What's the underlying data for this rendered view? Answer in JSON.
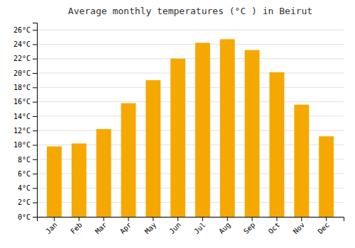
{
  "chart_data": {
    "type": "bar",
    "title": "Average monthly temperatures (°C ) in Beirut",
    "categories": [
      "Jan",
      "Feb",
      "Mar",
      "Apr",
      "May",
      "Jun",
      "Jul",
      "Aug",
      "Sep",
      "Oct",
      "Nov",
      "Dec"
    ],
    "values": [
      9.8,
      10.2,
      12.2,
      15.8,
      19.0,
      22.0,
      24.2,
      24.7,
      23.2,
      20.1,
      15.6,
      11.2
    ],
    "color": "#F5A800",
    "ylim": [
      0,
      27
    ],
    "yticks": [
      {
        "value": 0,
        "label": "0°C"
      },
      {
        "value": 2,
        "label": "2°C"
      },
      {
        "value": 4,
        "label": "4°C"
      },
      {
        "value": 6,
        "label": "6°C"
      },
      {
        "value": 8,
        "label": "8°C"
      },
      {
        "value": 10,
        "label": "10°C"
      },
      {
        "value": 12,
        "label": "12°C"
      },
      {
        "value": 14,
        "label": "14°C"
      },
      {
        "value": 16,
        "label": "16°C"
      },
      {
        "value": 18,
        "label": "18°C"
      },
      {
        "value": 20,
        "label": "20°C"
      },
      {
        "value": 22,
        "label": "22°C"
      },
      {
        "value": 24,
        "label": "24°C"
      },
      {
        "value": 26,
        "label": "26°C"
      }
    ],
    "grid": true
  }
}
